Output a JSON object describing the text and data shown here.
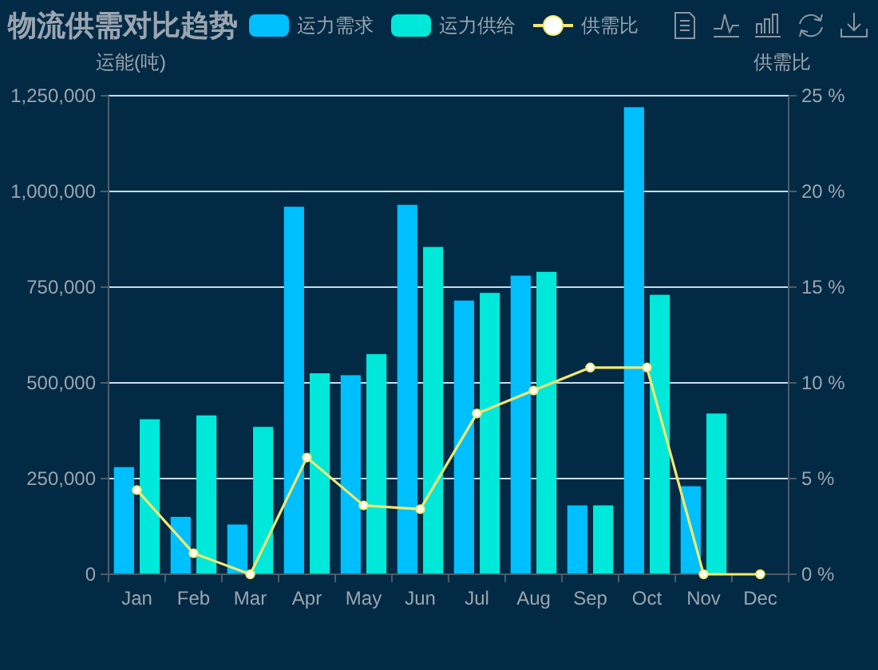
{
  "chart_data": {
    "type": "bar",
    "title": "物流供需对比趋势",
    "ylabel": "运能(吨)",
    "y2label": "供需比",
    "categories": [
      "Jan",
      "Feb",
      "Mar",
      "Apr",
      "May",
      "Jun",
      "Jul",
      "Aug",
      "Sep",
      "Oct",
      "Nov",
      "Dec"
    ],
    "series": [
      {
        "name": "运力需求",
        "color": "#00bfff",
        "values": [
          280000,
          150000,
          130000,
          960000,
          520000,
          965000,
          715000,
          780000,
          180000,
          1220000,
          230000,
          null
        ]
      },
      {
        "name": "运力供给",
        "color": "#00e8d9",
        "values": [
          405000,
          415000,
          385000,
          525000,
          575000,
          855000,
          735000,
          790000,
          180000,
          730000,
          420000,
          null
        ]
      },
      {
        "name": "供需比",
        "type": "line",
        "axis": "y2",
        "color": "#f2e86d",
        "marker": "circle",
        "values": [
          4.4,
          1.1,
          0,
          6.1,
          3.6,
          3.4,
          8.4,
          9.6,
          10.8,
          10.8,
          0,
          0
        ]
      }
    ],
    "ylim": [
      0,
      1250000
    ],
    "yticks": [
      0,
      {
        "value": 250000,
        "label": "250,000"
      },
      {
        "value": 500000,
        "label": "500,000"
      },
      {
        "value": 750000,
        "label": "750,000"
      },
      {
        "value": 1000000,
        "label": "1,000,000"
      },
      {
        "value": 1250000,
        "label": "1,250,000"
      }
    ],
    "y2lim": [
      0,
      25
    ],
    "y2ticks": [
      {
        "value": 0,
        "label": "0 %"
      },
      {
        "value": 5,
        "label": "5 %"
      },
      {
        "value": 10,
        "label": "10 %"
      },
      {
        "value": 15,
        "label": "15 %"
      },
      {
        "value": 20,
        "label": "20 %"
      },
      {
        "value": 25,
        "label": "25 %"
      }
    ],
    "grid": "y",
    "legend": "top"
  }
}
